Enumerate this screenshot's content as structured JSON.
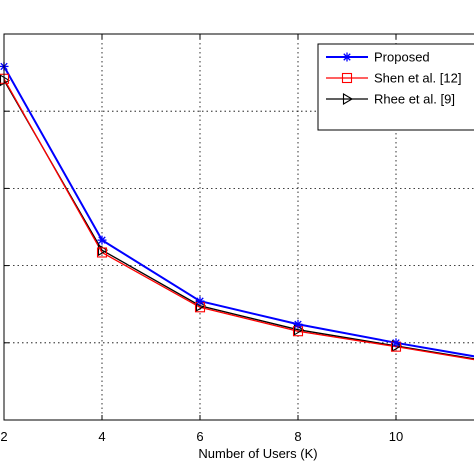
{
  "chart_data": {
    "type": "line",
    "xlabel": "Number of Users (K)",
    "ylabel": "",
    "xlim": [
      2,
      12
    ],
    "xticks": [
      2,
      4,
      6,
      8,
      10
    ],
    "ylim": [
      0,
      5
    ],
    "yticks": [
      1,
      2,
      3,
      4
    ],
    "grid": true,
    "legend_position": "top-right",
    "x": [
      2,
      4,
      6,
      8,
      10,
      12
    ],
    "series": [
      {
        "name": "Proposed",
        "color": "#0000ff",
        "marker": "asterisk",
        "values": [
          4.58,
          2.33,
          1.54,
          1.24,
          1.0,
          0.78
        ]
      },
      {
        "name": "Shen et al. [12]",
        "color": "#ff0000",
        "marker": "square",
        "values": [
          4.42,
          2.17,
          1.46,
          1.15,
          0.95,
          0.74
        ]
      },
      {
        "name": "Rhee et al. [9]",
        "color": "#000000",
        "marker": "triangle-right",
        "values": [
          4.4,
          2.2,
          1.48,
          1.17,
          0.96,
          0.75
        ]
      }
    ]
  }
}
